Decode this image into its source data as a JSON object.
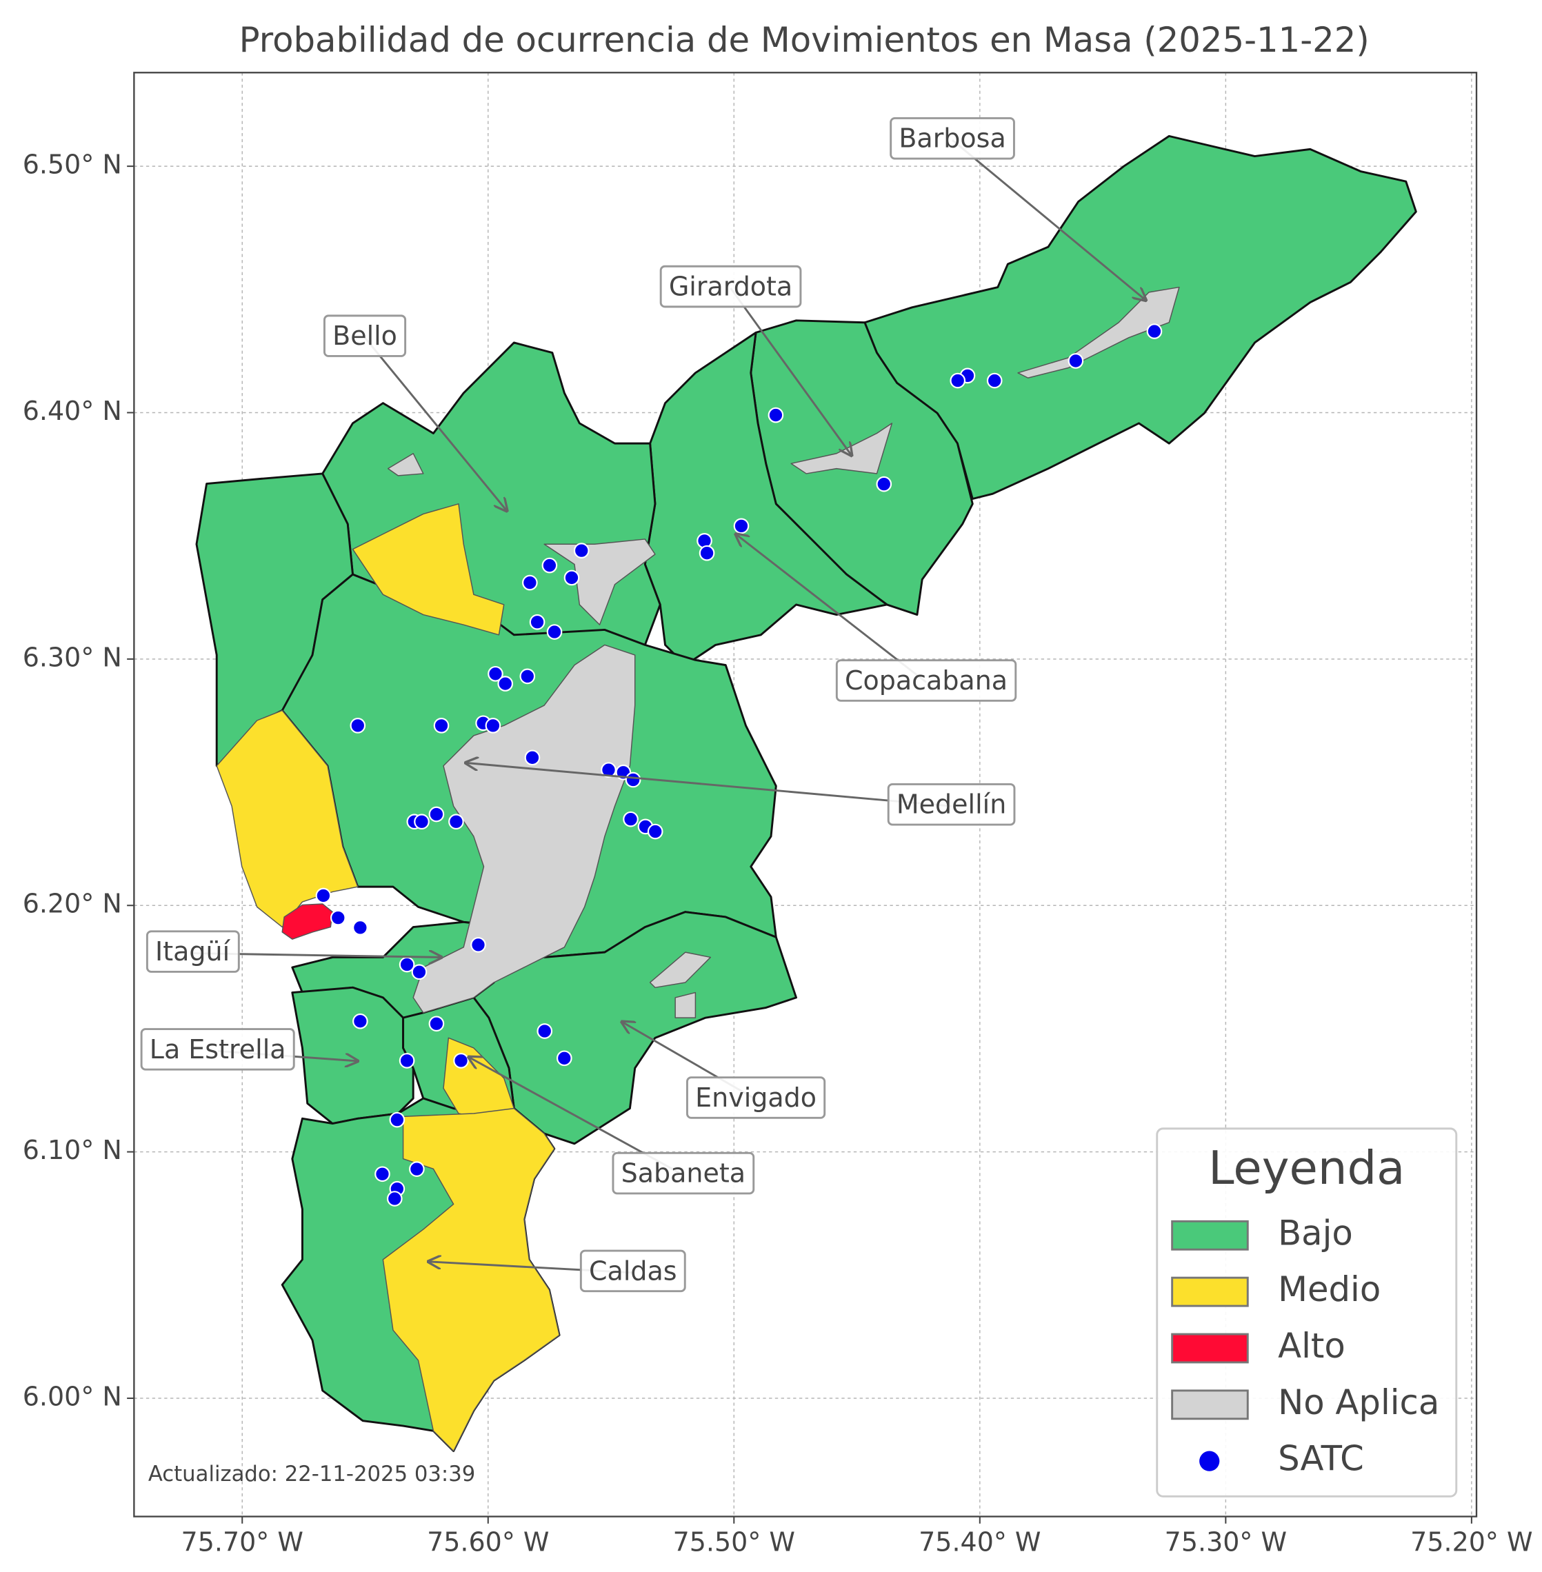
{
  "chart_data": {
    "type": "map",
    "title": "Probabilidad de ocurrencia de Movimientos en Masa (2025-11-22)",
    "footnote": "Actualizado: 22-11-2025 03:39",
    "xlim": [
      -75.744,
      -75.198
    ],
    "ylim": [
      5.952,
      6.538
    ],
    "grid": true,
    "xticks": [
      {
        "value": -75.7,
        "label": "75.70° W"
      },
      {
        "value": -75.6,
        "label": "75.60° W"
      },
      {
        "value": -75.5,
        "label": "75.50° W"
      },
      {
        "value": -75.4,
        "label": "75.40° W"
      },
      {
        "value": -75.3,
        "label": "75.30° W"
      },
      {
        "value": -75.2,
        "label": "75.20° W"
      }
    ],
    "yticks": [
      {
        "value": 6.0,
        "label": "6.00° N"
      },
      {
        "value": 6.1,
        "label": "6.10° N"
      },
      {
        "value": 6.2,
        "label": "6.20° N"
      },
      {
        "value": 6.3,
        "label": "6.30° N"
      },
      {
        "value": 6.4,
        "label": "6.40° N"
      },
      {
        "value": 6.5,
        "label": "6.50° N"
      }
    ],
    "legend": {
      "title": "Leyenda",
      "position": "lower right",
      "items": [
        {
          "label": "Bajo",
          "color": "#4ac97a"
        },
        {
          "label": "Medio",
          "color": "#fce02c"
        },
        {
          "label": "Alto",
          "color": "#ff0a34"
        },
        {
          "label": "No Aplica",
          "color": "#d3d3d3"
        }
      ]
    },
    "annotations": [
      {
        "text": "Barbosa"
      },
      {
        "text": "Girardota"
      },
      {
        "text": "Bello"
      },
      {
        "text": "Copacabana"
      },
      {
        "text": "Medellín"
      },
      {
        "text": "Itagüí"
      },
      {
        "text": "La Estrella"
      },
      {
        "text": "Envigado"
      },
      {
        "text": "Sabaneta"
      },
      {
        "text": "Caldas"
      }
    ],
    "stations": {
      "name": "SATC",
      "color": "#0000ee",
      "lon": [
        -75.329,
        -75.361,
        -75.394,
        -75.405,
        -75.409,
        -75.483,
        -75.439,
        -75.497,
        -75.512,
        -75.511,
        -75.562,
        -75.575,
        -75.566,
        -75.583,
        -75.58,
        -75.573,
        -75.584,
        -75.597,
        -75.593,
        -75.653,
        -75.619,
        -75.602,
        -75.598,
        -75.582,
        -75.551,
        -75.545,
        -75.541,
        -75.542,
        -75.536,
        -75.532,
        -75.63,
        -75.627,
        -75.621,
        -75.613,
        -75.667,
        -75.661,
        -75.652,
        -75.604,
        -75.633,
        -75.628,
        -75.652,
        -75.621,
        -75.577,
        -75.569,
        -75.633,
        -75.611,
        -75.637,
        -75.643,
        -75.629,
        -75.637,
        -75.638
      ],
      "lat": [
        6.433,
        6.421,
        6.413,
        6.415,
        6.413,
        6.399,
        6.371,
        6.354,
        6.348,
        6.343,
        6.344,
        6.338,
        6.333,
        6.331,
        6.315,
        6.311,
        6.293,
        6.294,
        6.29,
        6.273,
        6.273,
        6.274,
        6.273,
        6.26,
        6.255,
        6.254,
        6.251,
        6.235,
        6.232,
        6.23,
        6.234,
        6.234,
        6.237,
        6.234,
        6.204,
        6.195,
        6.191,
        6.184,
        6.176,
        6.173,
        6.153,
        6.152,
        6.149,
        6.138,
        6.137,
        6.137,
        6.113,
        6.091,
        6.093,
        6.085,
        6.081
      ]
    }
  }
}
